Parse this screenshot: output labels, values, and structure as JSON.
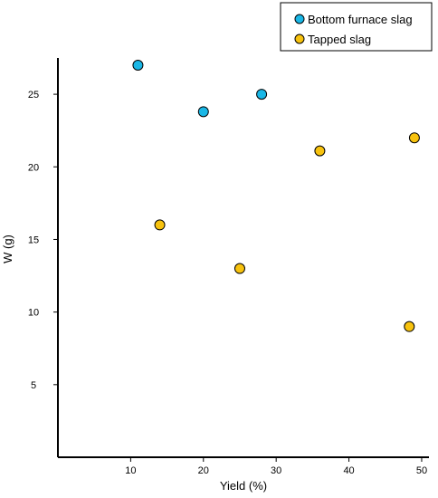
{
  "chart_data": {
    "type": "scatter",
    "title": "",
    "xlabel": "Yield (%)",
    "ylabel": "W (g)",
    "xlim": [
      0,
      51
    ],
    "ylim": [
      0,
      27.5
    ],
    "xticks": [
      "10",
      "20",
      "30",
      "40",
      "50"
    ],
    "yticks": [
      "5",
      "10",
      "15",
      "20",
      "25"
    ],
    "xtick_values": [
      10,
      20,
      30,
      40,
      50
    ],
    "ytick_values": [
      5,
      10,
      15,
      20,
      25
    ],
    "grid": false,
    "legend_position": "top-right",
    "series": [
      {
        "name": "Bottom furnace slag",
        "color": "#1AB7E6",
        "points": [
          {
            "x": 11,
            "y": 27
          },
          {
            "x": 20,
            "y": 23.8
          },
          {
            "x": 28,
            "y": 25
          }
        ]
      },
      {
        "name": "Tapped slag",
        "color": "#F7C20E",
        "points": [
          {
            "x": 14,
            "y": 16
          },
          {
            "x": 25,
            "y": 13
          },
          {
            "x": 36,
            "y": 21.1
          },
          {
            "x": 49,
            "y": 22
          },
          {
            "x": 48.3,
            "y": 9
          }
        ]
      }
    ]
  }
}
